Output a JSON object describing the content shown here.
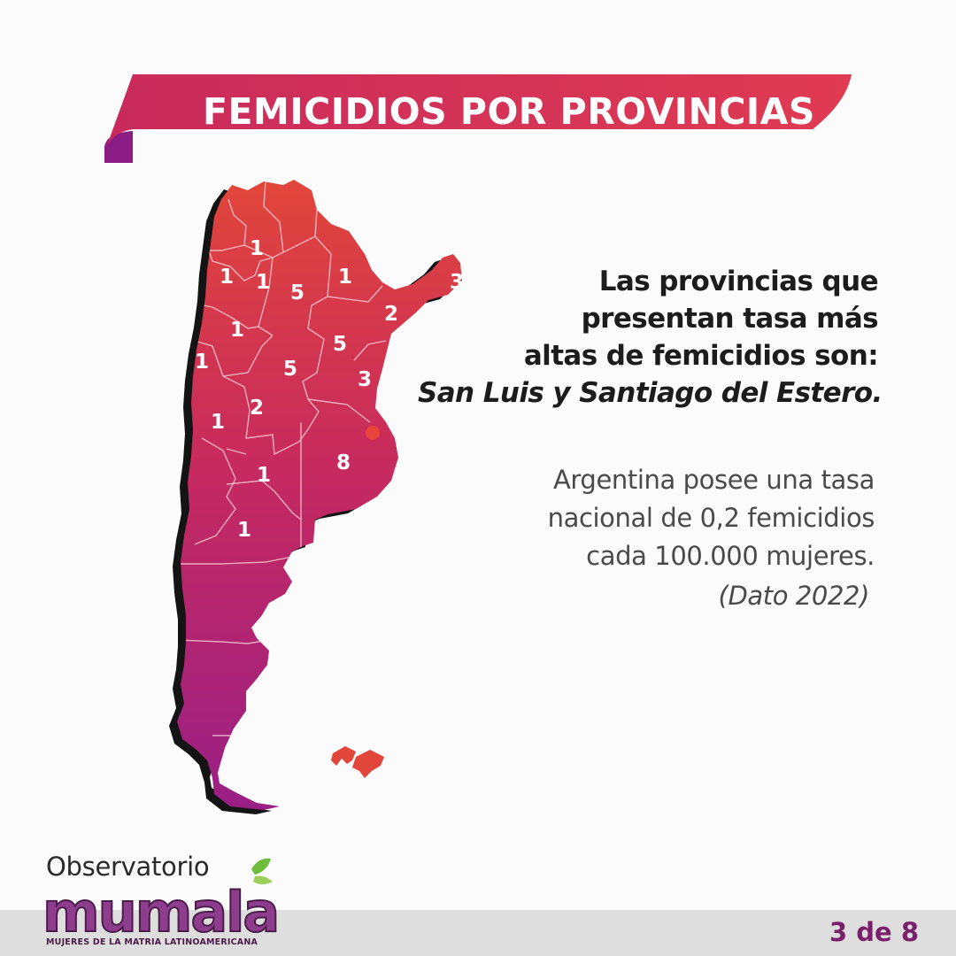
{
  "header": {
    "title": "FEMICIDIOS POR PROVINCIAS"
  },
  "map": {
    "province_counts": [
      "1",
      "1",
      "1",
      "5",
      "1",
      "3",
      "2",
      "1",
      "5",
      "1",
      "5",
      "3",
      "1",
      "2",
      "8",
      "1",
      "1"
    ],
    "colors": {
      "top": "#e2463a",
      "middle": "#c72a5e",
      "bottom": "#9a1f85",
      "falklands": "#e2463a"
    }
  },
  "headline": {
    "line1": "Las provincias que",
    "line2": "presentan tasa más",
    "line3": "altas de femicidios son:",
    "line4": "San Luis y Santiago del Estero."
  },
  "note": {
    "line1": "Argentina posee una tasa",
    "line2": "nacional de 0,2 femicidios",
    "line3": "cada 100.000 mujeres.",
    "source": "(Dato 2022)"
  },
  "logo": {
    "top": "Observatorio",
    "name": "mumala",
    "tagline": "MUJERES DE LA MATRIA LATINOAMERICANA"
  },
  "footer": {
    "page": "3 de 8"
  }
}
